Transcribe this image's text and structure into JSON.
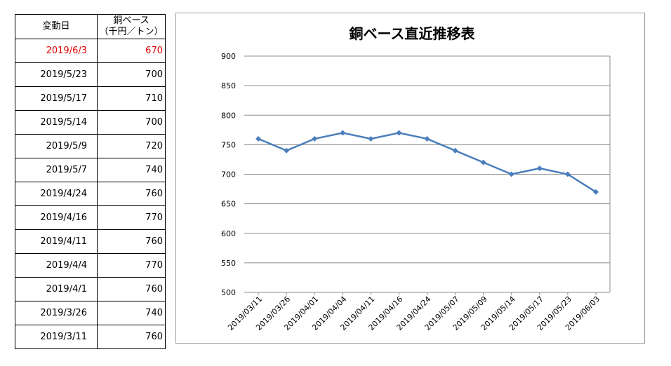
{
  "table": {
    "header_date": "変動日",
    "header_base_line1": "銅ベース",
    "header_base_line2": "（千円／トン）",
    "rows": [
      {
        "date": "2019/6/3",
        "base": "670"
      },
      {
        "date": "2019/5/23",
        "base": "700"
      },
      {
        "date": "2019/5/17",
        "base": "710"
      },
      {
        "date": "2019/5/14",
        "base": "700"
      },
      {
        "date": "2019/5/9",
        "base": "720"
      },
      {
        "date": "2019/5/7",
        "base": "740"
      },
      {
        "date": "2019/4/24",
        "base": "760"
      },
      {
        "date": "2019/4/16",
        "base": "770"
      },
      {
        "date": "2019/4/11",
        "base": "760"
      },
      {
        "date": "2019/4/4",
        "base": "770"
      },
      {
        "date": "2019/4/1",
        "base": "760"
      },
      {
        "date": "2019/3/26",
        "base": "740"
      },
      {
        "date": "2019/3/11",
        "base": "760"
      }
    ],
    "highlight_color": "#e00000"
  },
  "chart_data": {
    "type": "line",
    "title": "銅ベース直近推移表",
    "xlabel": "",
    "ylabel": "",
    "categories": [
      "2019/03/11",
      "2019/03/26",
      "2019/04/01",
      "2019/04/04",
      "2019/04/11",
      "2019/04/16",
      "2019/04/24",
      "2019/05/07",
      "2019/05/09",
      "2019/05/14",
      "2019/05/17",
      "2019/05/23",
      "2019/06/03"
    ],
    "series": [
      {
        "values": [
          760,
          740,
          760,
          770,
          760,
          770,
          760,
          740,
          720,
          700,
          710,
          700,
          670
        ]
      }
    ],
    "ylim": [
      500,
      900
    ],
    "yticks": [
      900,
      850,
      800,
      750,
      700,
      650,
      600,
      550,
      500
    ],
    "grid": true,
    "legend": "none",
    "line_color": "#4a7ebb"
  }
}
